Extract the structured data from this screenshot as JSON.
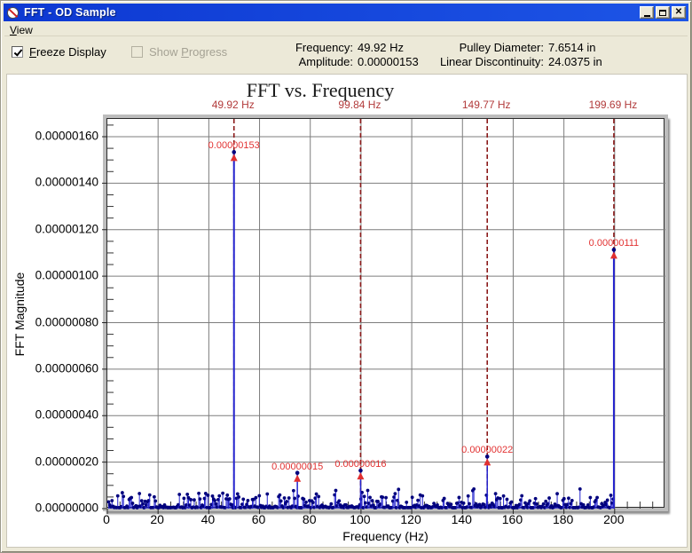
{
  "window": {
    "title": "FFT - OD Sample",
    "buttons": {
      "minimize": "minimize",
      "maximize": "maximize",
      "close": "close"
    }
  },
  "menu": {
    "view": {
      "u": "V",
      "rest": "iew"
    }
  },
  "toolbar": {
    "freeze_display": {
      "u": "F",
      "rest": "reeze Display",
      "checked": true
    },
    "show_progress": {
      "pre": "Show ",
      "u": "P",
      "rest": "rogress",
      "checked": false,
      "enabled": false
    },
    "status": {
      "frequency": {
        "label": "Frequency:",
        "value": "49.92 Hz"
      },
      "amplitude": {
        "label": "Amplitude:",
        "value": "0.00000153"
      },
      "pulley_diameter": {
        "label": "Pulley Diameter:",
        "value": "7.6514 in"
      },
      "linear_discontinuity": {
        "label": "Linear Discontinuity:",
        "value": "24.0375 in"
      }
    }
  },
  "colors": {
    "titlebar_blue": "#1545e0",
    "grid_gray": "#7d7d7d",
    "frame_dark": "#2b2b2b",
    "series_blue": "#2323cf",
    "marker_navy": "#00007d",
    "cursor_dark_red": "#8b1a1a",
    "annotation_red": "#e23232",
    "top_label_red": "#b23b3b",
    "arrow_red": "#e03030"
  },
  "chart_data": {
    "type": "line",
    "title": "FFT vs. Frequency",
    "x_axis": {
      "title": "Frequency (Hz)",
      "min": 0,
      "max": 220,
      "major_tick_step": 20,
      "minor_tick_step": 5,
      "tick_labels": [
        "0",
        "20",
        "40",
        "60",
        "80",
        "100",
        "120",
        "140",
        "160",
        "180",
        "200"
      ],
      "tick_values": [
        0,
        20,
        40,
        60,
        80,
        100,
        120,
        140,
        160,
        180,
        200
      ]
    },
    "y_axis": {
      "title": "FFT Magnitude",
      "min_e8": 0,
      "max_e8": 167.6,
      "major_tick_step_e8": 20,
      "minor_tick_step_e8": 5,
      "tick_labels": [
        "0.00000000",
        "0.00000020",
        "0.00000040",
        "0.00000060",
        "0.00000080",
        "0.00000100",
        "0.00000120",
        "0.00000140",
        "0.00000160"
      ],
      "tick_values_e8": [
        0,
        20,
        40,
        60,
        80,
        100,
        120,
        140,
        160
      ]
    },
    "grid": true,
    "cursor_lines": [
      {
        "freq_hz": 49.92,
        "label": "49.92 Hz"
      },
      {
        "freq_hz": 99.84,
        "label": "99.84 Hz"
      },
      {
        "freq_hz": 149.77,
        "label": "149.77 Hz"
      },
      {
        "freq_hz": 199.69,
        "label": "199.69 Hz"
      }
    ],
    "peaks": [
      {
        "freq_hz": 49.92,
        "amp_e8": 153,
        "label": "0.00000153"
      },
      {
        "freq_hz": 74.9,
        "amp_e8": 15,
        "label": "0.00000015"
      },
      {
        "freq_hz": 99.84,
        "amp_e8": 16,
        "label": "0.00000016"
      },
      {
        "freq_hz": 149.77,
        "amp_e8": 22,
        "label": "0.00000022"
      },
      {
        "freq_hz": 199.69,
        "amp_e8": 111,
        "label": "0.00000111"
      }
    ],
    "noise_floor": {
      "seed": 20,
      "from_hz": 0.5,
      "to_hz": 199.5,
      "step_hz": 0.45,
      "base_e8": 0.4,
      "max_e8": 8.5
    }
  }
}
